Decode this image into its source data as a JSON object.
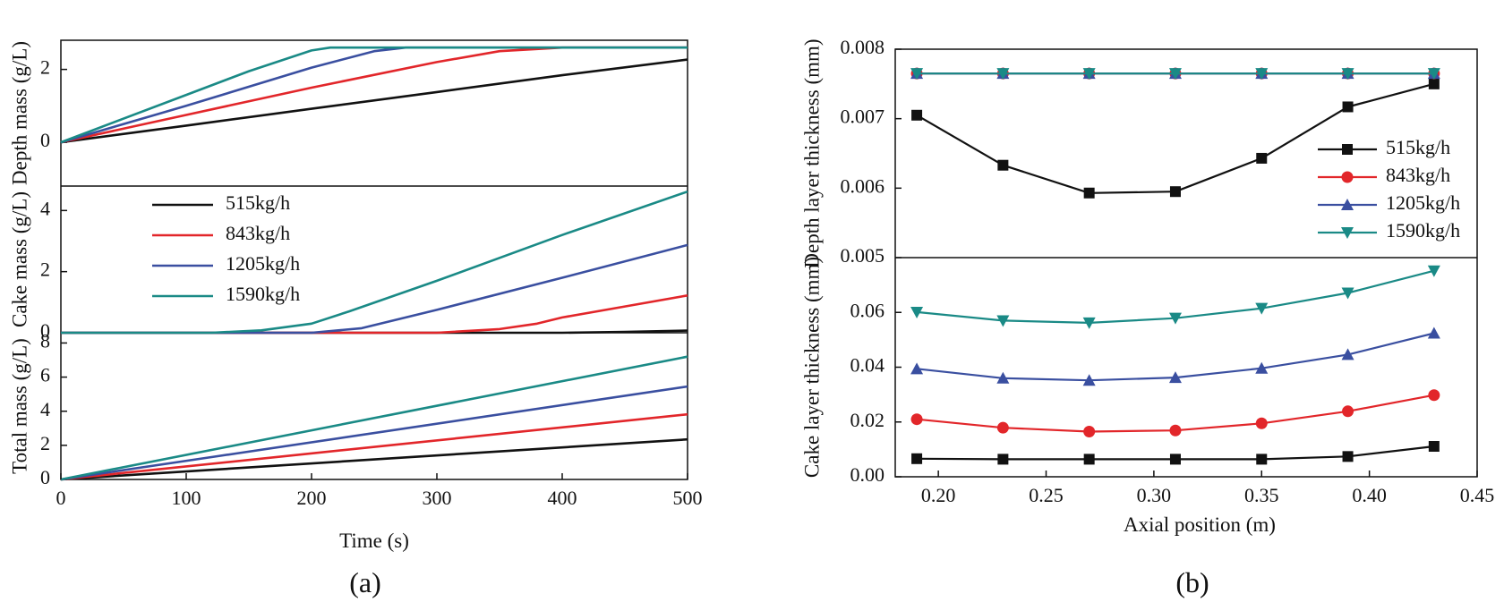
{
  "colors": {
    "515kg/h": "#111111",
    "843kg/h": "#e2262a",
    "1205kg/h": "#3a4fa0",
    "1590kg/h": "#1a8a86"
  },
  "chart_data": [
    {
      "type": "line",
      "panel": "(a)",
      "xlabel": "Time (s)",
      "xlim": [
        0,
        500
      ],
      "xticks": [
        0,
        100,
        200,
        300,
        400,
        500
      ],
      "legend": {
        "placement": "middle-subplot upper-left",
        "entries": [
          "515kg/h",
          "843kg/h",
          "1205kg/h",
          "1590kg/h"
        ]
      },
      "subplots": [
        {
          "ylabel": "Depth mass (g/L)",
          "ylim": [
            -1.2,
            2.8
          ],
          "yticks": [
            0,
            2
          ],
          "series": [
            {
              "name": "515kg/h",
              "x": [
                0,
                100,
                200,
                300,
                400,
                500
              ],
              "y": [
                0,
                0.46,
                0.92,
                1.38,
                1.84,
                2.27
              ]
            },
            {
              "name": "843kg/h",
              "x": [
                0,
                100,
                200,
                300,
                350,
                400,
                450,
                500
              ],
              "y": [
                0,
                0.75,
                1.5,
                2.2,
                2.5,
                2.6,
                2.6,
                2.6
              ]
            },
            {
              "name": "1205kg/h",
              "x": [
                0,
                100,
                200,
                250,
                275,
                300,
                400,
                500
              ],
              "y": [
                0,
                1.0,
                2.05,
                2.5,
                2.6,
                2.6,
                2.6,
                2.6
              ]
            },
            {
              "name": "1590kg/h",
              "x": [
                0,
                100,
                150,
                200,
                215,
                300,
                400,
                500
              ],
              "y": [
                0,
                1.3,
                1.95,
                2.52,
                2.6,
                2.6,
                2.6,
                2.6
              ]
            }
          ]
        },
        {
          "ylabel": "Cake mass (g/L)",
          "ylim": [
            0,
            4.8
          ],
          "yticks": [
            0,
            2,
            4
          ],
          "series": [
            {
              "name": "515kg/h",
              "x": [
                0,
                400,
                450,
                500
              ],
              "y": [
                0,
                0,
                0.03,
                0.07
              ]
            },
            {
              "name": "843kg/h",
              "x": [
                0,
                300,
                350,
                380,
                400,
                450,
                500
              ],
              "y": [
                0,
                0,
                0.12,
                0.3,
                0.5,
                0.86,
                1.22
              ]
            },
            {
              "name": "1205kg/h",
              "x": [
                0,
                200,
                240,
                270,
                300,
                400,
                500
              ],
              "y": [
                0,
                0,
                0.15,
                0.45,
                0.75,
                1.8,
                2.87
              ]
            },
            {
              "name": "1590kg/h",
              "x": [
                0,
                120,
                160,
                200,
                230,
                300,
                400,
                500
              ],
              "y": [
                0,
                0,
                0.08,
                0.3,
                0.7,
                1.7,
                3.2,
                4.62
              ]
            }
          ]
        },
        {
          "ylabel": "Total mass (g/L)",
          "ylim": [
            0,
            8.6
          ],
          "yticks": [
            0,
            2,
            4,
            6,
            8
          ],
          "series": [
            {
              "name": "515kg/h",
              "x": [
                0,
                500
              ],
              "y": [
                0,
                2.35
              ]
            },
            {
              "name": "843kg/h",
              "x": [
                0,
                500
              ],
              "y": [
                0,
                3.82
              ]
            },
            {
              "name": "1205kg/h",
              "x": [
                0,
                500
              ],
              "y": [
                0,
                5.45
              ]
            },
            {
              "name": "1590kg/h",
              "x": [
                0,
                500
              ],
              "y": [
                0,
                7.2
              ]
            }
          ]
        }
      ]
    },
    {
      "type": "line",
      "panel": "(b)",
      "xlabel": "Axial position (m)",
      "xlim": [
        0.18,
        0.45
      ],
      "xticks": [
        0.2,
        0.25,
        0.3,
        0.35,
        0.4,
        0.45
      ],
      "xtick_labels": [
        "0.20",
        "0.25",
        "0.30",
        "0.35",
        "0.40",
        "0.45"
      ],
      "markers": {
        "515kg/h": "square",
        "843kg/h": "circle",
        "1205kg/h": "triangle-up",
        "1590kg/h": "triangle-down"
      },
      "legend": {
        "placement": "top-subplot right",
        "entries": [
          "515kg/h",
          "843kg/h",
          "1205kg/h",
          "1590kg/h"
        ]
      },
      "subplots": [
        {
          "ylabel": "Depth layer thickness (mm)",
          "ylim": [
            0.005,
            0.008
          ],
          "yticks": [
            0.005,
            0.006,
            0.007,
            0.008
          ],
          "ytick_labels": [
            "0.005",
            "0.006",
            "0.007",
            "0.008"
          ],
          "series": [
            {
              "name": "515kg/h",
              "x": [
                0.19,
                0.23,
                0.27,
                0.31,
                0.35,
                0.39,
                0.43
              ],
              "y": [
                0.00705,
                0.00633,
                0.00593,
                0.00595,
                0.00643,
                0.00717,
                0.0075
              ]
            },
            {
              "name": "843kg/h",
              "x": [
                0.19,
                0.23,
                0.27,
                0.31,
                0.35,
                0.39,
                0.43
              ],
              "y": [
                0.00765,
                0.00765,
                0.00765,
                0.00765,
                0.00765,
                0.00765,
                0.00765
              ]
            },
            {
              "name": "1205kg/h",
              "x": [
                0.19,
                0.23,
                0.27,
                0.31,
                0.35,
                0.39,
                0.43
              ],
              "y": [
                0.00765,
                0.00765,
                0.00765,
                0.00765,
                0.00765,
                0.00765,
                0.00765
              ]
            },
            {
              "name": "1590kg/h",
              "x": [
                0.19,
                0.23,
                0.27,
                0.31,
                0.35,
                0.39,
                0.43
              ],
              "y": [
                0.00765,
                0.00765,
                0.00765,
                0.00765,
                0.00765,
                0.00765,
                0.00765
              ]
            }
          ]
        },
        {
          "ylabel": "Cake layer thickness (mm)",
          "ylim": [
            0,
            0.08
          ],
          "yticks": [
            0,
            0.02,
            0.04,
            0.06
          ],
          "ytick_labels": [
            "0.00",
            "0.02",
            "0.04",
            "0.06"
          ],
          "series": [
            {
              "name": "515kg/h",
              "x": [
                0.19,
                0.23,
                0.27,
                0.31,
                0.35,
                0.39,
                0.43
              ],
              "y": [
                0.0066,
                0.0064,
                0.0064,
                0.0064,
                0.0064,
                0.0074,
                0.0111
              ]
            },
            {
              "name": "843kg/h",
              "x": [
                0.19,
                0.23,
                0.27,
                0.31,
                0.35,
                0.39,
                0.43
              ],
              "y": [
                0.021,
                0.0179,
                0.0165,
                0.0169,
                0.0195,
                0.0239,
                0.0298
              ]
            },
            {
              "name": "1205kg/h",
              "x": [
                0.19,
                0.23,
                0.27,
                0.31,
                0.35,
                0.39,
                0.43
              ],
              "y": [
                0.0394,
                0.036,
                0.0352,
                0.0362,
                0.0396,
                0.0446,
                0.0524
              ]
            },
            {
              "name": "1590kg/h",
              "x": [
                0.19,
                0.23,
                0.27,
                0.31,
                0.35,
                0.39,
                0.43
              ],
              "y": [
                0.0601,
                0.057,
                0.0562,
                0.0579,
                0.0615,
                0.0671,
                0.0752
              ]
            }
          ]
        }
      ]
    }
  ]
}
